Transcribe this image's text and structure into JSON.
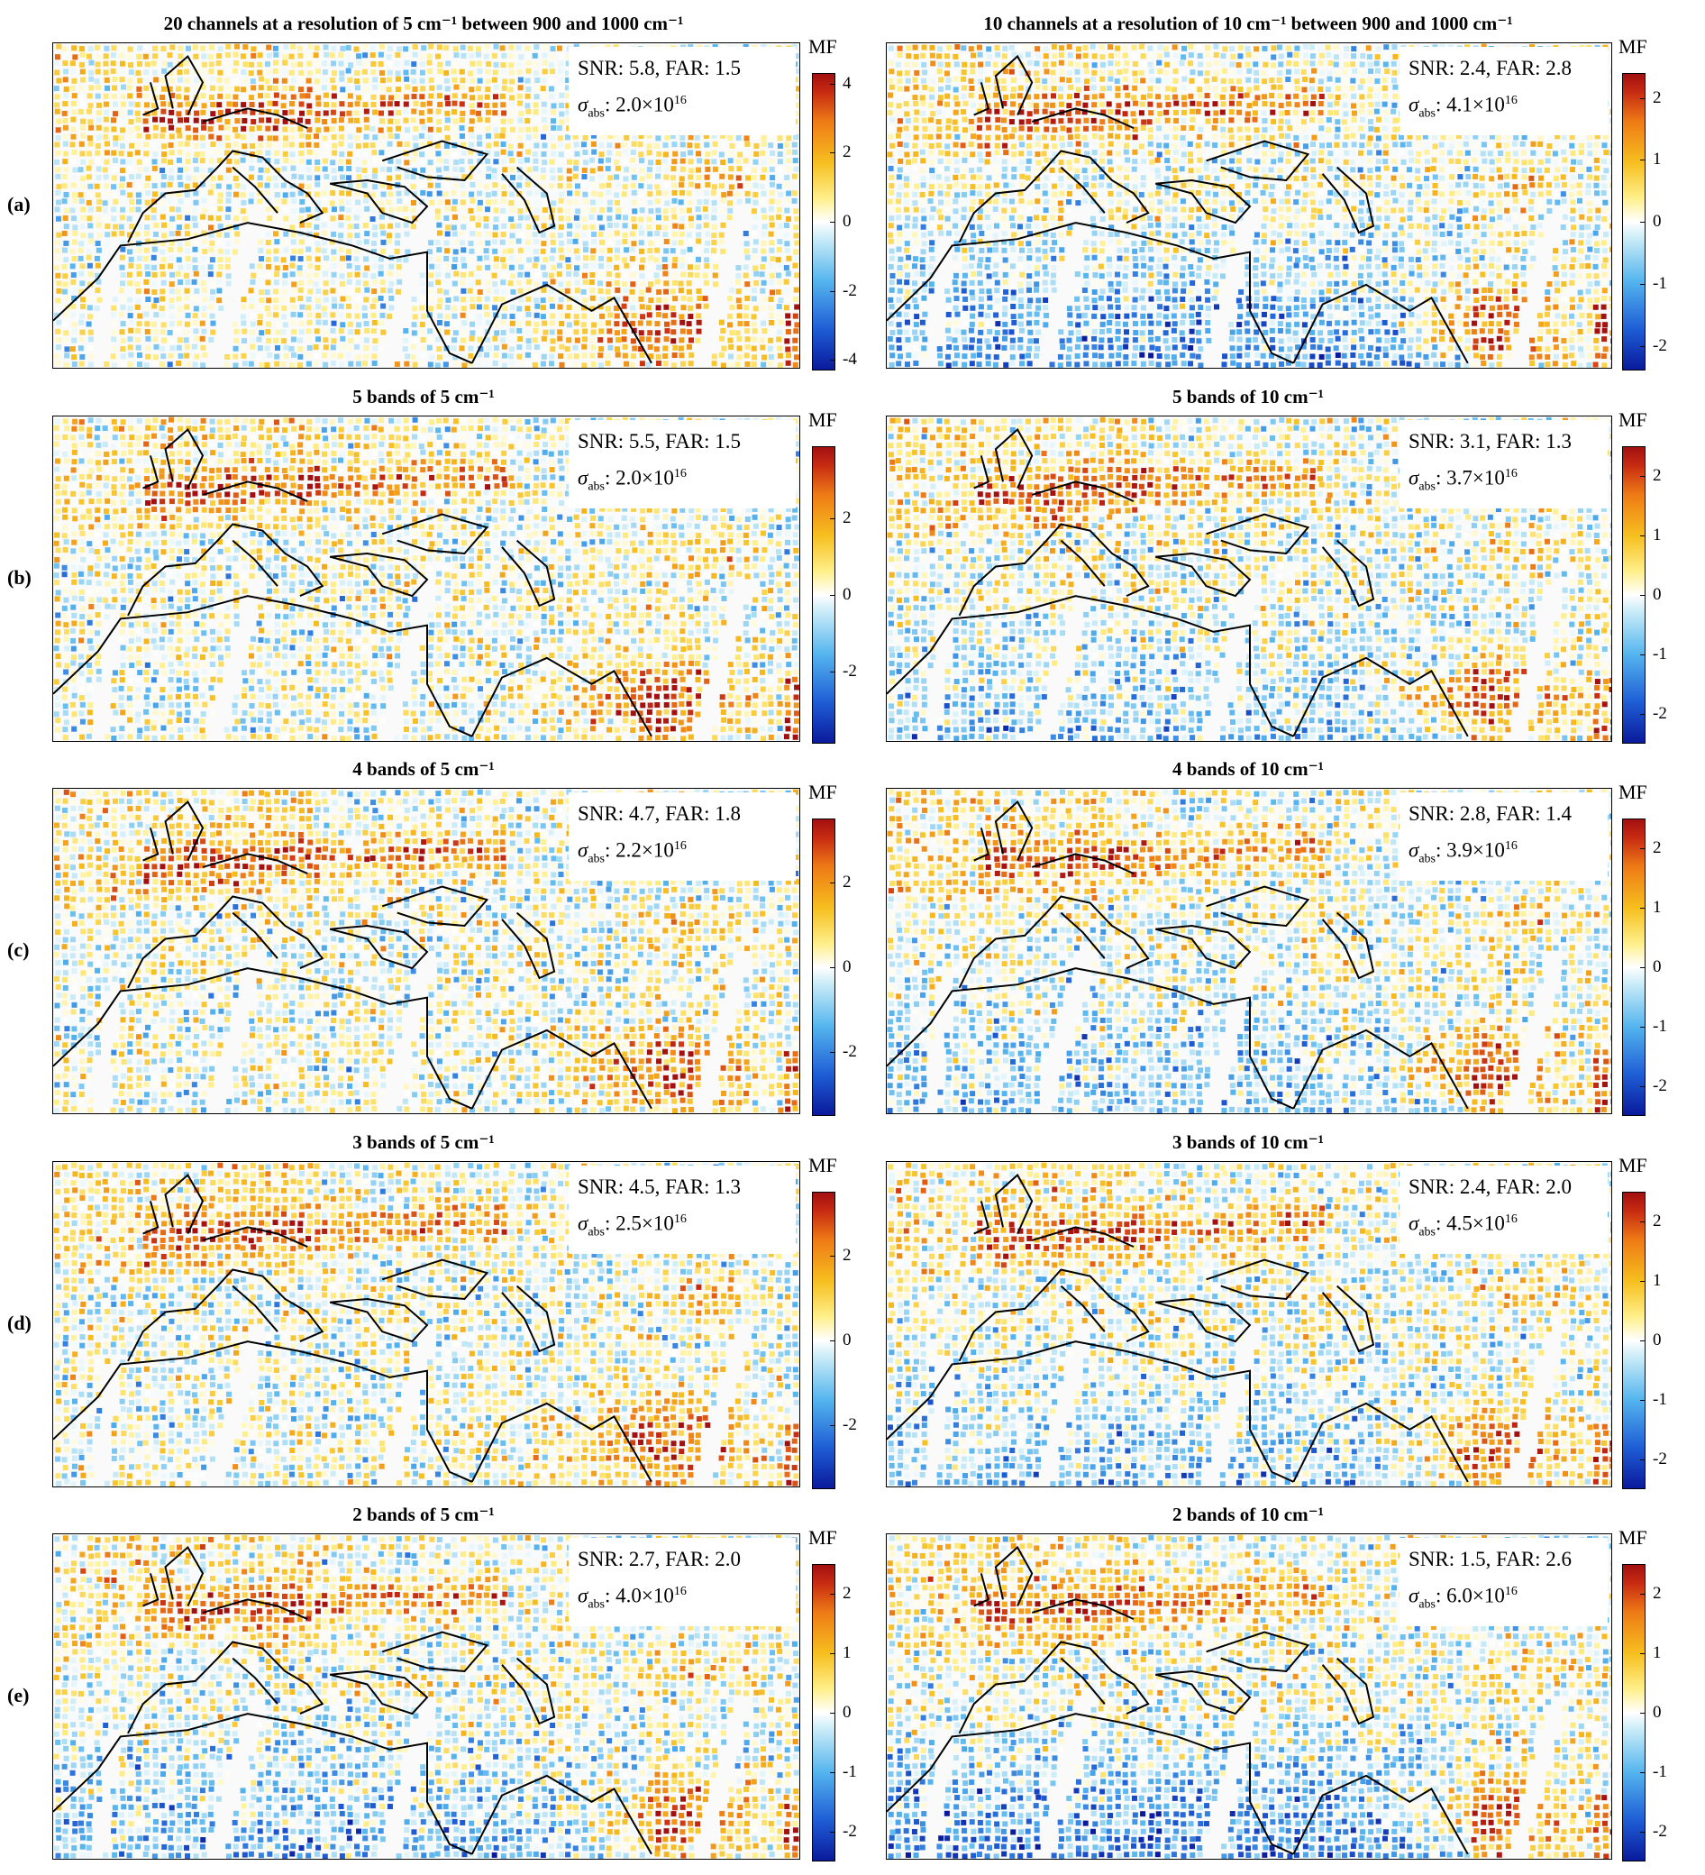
{
  "colorbar_label": "MF",
  "rows": [
    {
      "label": "(a)",
      "panels": [
        {
          "title": "20 channels at a resolution of 5 cm⁻¹ between 900 and 1000 cm⁻¹",
          "stats": {
            "snr_far": "SNR: 5.8, FAR: 1.5",
            "sigma_symbol": "σ",
            "sigma_sub": "abs",
            "sigma_value": ": 2.0×10",
            "sigma_exp": "16"
          },
          "ticks": [
            "4",
            "2",
            "0",
            "-2",
            "-4"
          ],
          "tick_values": [
            4,
            2,
            0,
            -2,
            -4
          ],
          "range": [
            -4.3,
            4.3
          ]
        },
        {
          "title": "10 channels at a resolution of 10 cm⁻¹ between 900 and 1000 cm⁻¹",
          "stats": {
            "snr_far": "SNR: 2.4, FAR: 2.8",
            "sigma_symbol": "σ",
            "sigma_sub": "abs",
            "sigma_value": ": 4.1×10",
            "sigma_exp": "16"
          },
          "ticks": [
            "2",
            "1",
            "0",
            "-1",
            "-2"
          ],
          "tick_values": [
            2,
            1,
            0,
            -1,
            -2
          ],
          "range": [
            -2.4,
            2.4
          ]
        }
      ]
    },
    {
      "label": "(b)",
      "panels": [
        {
          "title": "5 bands of 5 cm⁻¹",
          "stats": {
            "snr_far": "SNR: 5.5, FAR: 1.5",
            "sigma_symbol": "σ",
            "sigma_sub": "abs",
            "sigma_value": ": 2.0×10",
            "sigma_exp": "16"
          },
          "ticks": [
            "2",
            "0",
            "-2"
          ],
          "tick_values": [
            2,
            0,
            -2
          ],
          "range": [
            -3.9,
            3.9
          ]
        },
        {
          "title": "5 bands of 10 cm⁻¹",
          "stats": {
            "snr_far": "SNR: 3.1, FAR: 1.3",
            "sigma_symbol": "σ",
            "sigma_sub": "abs",
            "sigma_value": ": 3.7×10",
            "sigma_exp": "16"
          },
          "ticks": [
            "2",
            "1",
            "0",
            "-1",
            "-2"
          ],
          "tick_values": [
            2,
            1,
            0,
            -1,
            -2
          ],
          "range": [
            -2.5,
            2.5
          ]
        }
      ]
    },
    {
      "label": "(c)",
      "panels": [
        {
          "title": "4 bands of 5 cm⁻¹",
          "stats": {
            "snr_far": "SNR: 4.7, FAR: 1.8",
            "sigma_symbol": "σ",
            "sigma_sub": "abs",
            "sigma_value": ": 2.2×10",
            "sigma_exp": "16"
          },
          "ticks": [
            "2",
            "0",
            "-2"
          ],
          "tick_values": [
            2,
            0,
            -2
          ],
          "range": [
            -3.5,
            3.5
          ]
        },
        {
          "title": "4 bands of 10 cm⁻¹",
          "stats": {
            "snr_far": "SNR: 2.8, FAR: 1.4",
            "sigma_symbol": "σ",
            "sigma_sub": "abs",
            "sigma_value": ": 3.9×10",
            "sigma_exp": "16"
          },
          "ticks": [
            "2",
            "1",
            "0",
            "-1",
            "-2"
          ],
          "tick_values": [
            2,
            1,
            0,
            -1,
            -2
          ],
          "range": [
            -2.5,
            2.5
          ]
        }
      ]
    },
    {
      "label": "(d)",
      "panels": [
        {
          "title": "3 bands of 5 cm⁻¹",
          "stats": {
            "snr_far": "SNR: 4.5, FAR: 1.3",
            "sigma_symbol": "σ",
            "sigma_sub": "abs",
            "sigma_value": ": 2.5×10",
            "sigma_exp": "16"
          },
          "ticks": [
            "2",
            "0",
            "-2"
          ],
          "tick_values": [
            2,
            0,
            -2
          ],
          "range": [
            -3.5,
            3.5
          ]
        },
        {
          "title": "3 bands of 10 cm⁻¹",
          "stats": {
            "snr_far": "SNR: 2.4, FAR: 2.0",
            "sigma_symbol": "σ",
            "sigma_sub": "abs",
            "sigma_value": ": 4.5×10",
            "sigma_exp": "16"
          },
          "ticks": [
            "2",
            "1",
            "0",
            "-1",
            "-2"
          ],
          "tick_values": [
            2,
            1,
            0,
            -1,
            -2
          ],
          "range": [
            -2.5,
            2.5
          ]
        }
      ]
    },
    {
      "label": "(e)",
      "panels": [
        {
          "title": "2 bands of 5 cm⁻¹",
          "stats": {
            "snr_far": "SNR: 2.7, FAR: 2.0",
            "sigma_symbol": "σ",
            "sigma_sub": "abs",
            "sigma_value": ": 4.0×10",
            "sigma_exp": "16"
          },
          "ticks": [
            "2",
            "1",
            "0",
            "-1",
            "-2"
          ],
          "tick_values": [
            2,
            1,
            0,
            -1,
            -2
          ],
          "range": [
            -2.5,
            2.5
          ]
        },
        {
          "title": "2 bands of 10 cm⁻¹",
          "stats": {
            "snr_far": "SNR: 1.5, FAR: 2.6",
            "sigma_symbol": "σ",
            "sigma_sub": "abs",
            "sigma_value": ": 6.0×10",
            "sigma_exp": "16"
          },
          "ticks": [
            "2",
            "1",
            "0",
            "-1",
            "-2"
          ],
          "tick_values": [
            2,
            1,
            0,
            -1,
            -2
          ],
          "range": [
            -2.5,
            2.5
          ]
        }
      ]
    }
  ]
}
